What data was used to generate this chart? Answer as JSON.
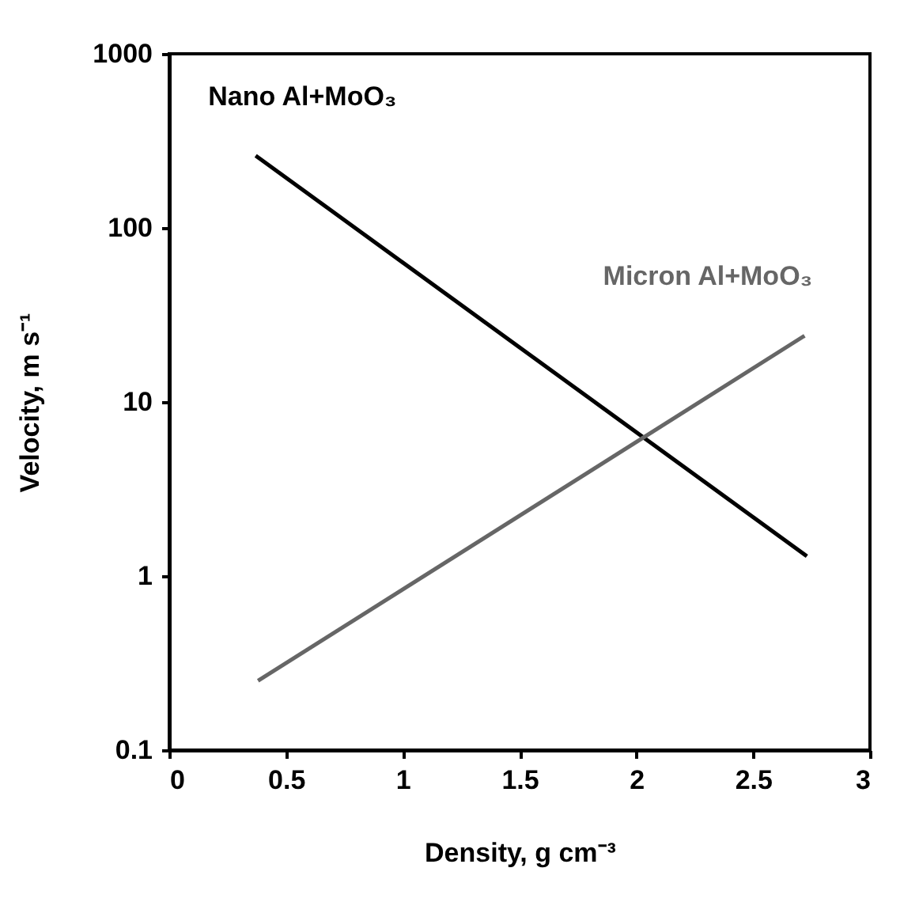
{
  "chart_data": {
    "type": "line",
    "xlabel": "Density, g cm⁻³",
    "ylabel": "Velocity, m s⁻¹",
    "log": "y",
    "xlim": [
      0,
      3
    ],
    "xticks": [
      0,
      0.5,
      1,
      1.5,
      2,
      2.5,
      3
    ],
    "ylim": [
      0.1,
      1000
    ],
    "yticks": [
      0.1,
      1,
      10,
      100,
      1000
    ],
    "grid": false,
    "legend": false,
    "marker": "none",
    "line_style": "solid",
    "series": [
      {
        "name": "Nano Al+MoO₃",
        "color": "#000000",
        "x": [
          0.37,
          2.73
        ],
        "values": [
          260,
          1.3
        ]
      },
      {
        "name": "Micron Al+MoO₃",
        "color": "#666666",
        "x": [
          0.38,
          2.72
        ],
        "values": [
          0.25,
          24
        ]
      }
    ]
  }
}
